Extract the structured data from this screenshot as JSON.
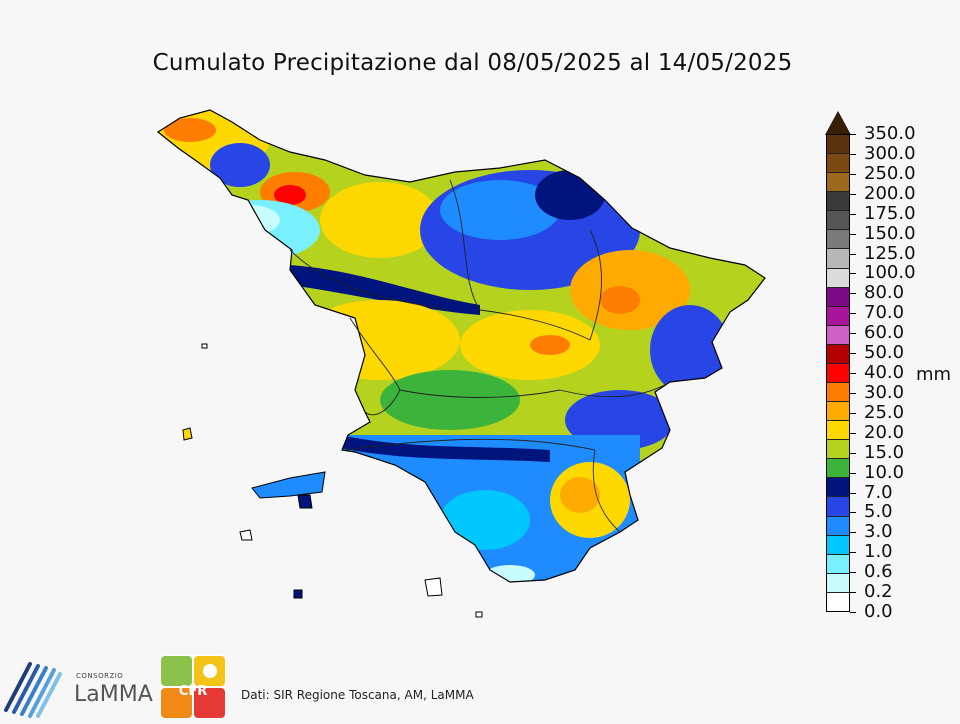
{
  "title": "Cumulato Precipitazione dal 08/05/2025 al 14/05/2025",
  "colorbar": {
    "unit": "mm",
    "labels": [
      "350.0",
      "300.0",
      "250.0",
      "200.0",
      "175.0",
      "150.0",
      "125.0",
      "100.0",
      "80.0",
      "70.0",
      "60.0",
      "50.0",
      "40.0",
      "30.0",
      "25.0",
      "20.0",
      "15.0",
      "10.0",
      "7.0",
      "5.0",
      "3.0",
      "1.0",
      "0.6",
      "0.2",
      "0.0"
    ],
    "colors": [
      "#5a3210",
      "#7a4a12",
      "#9b6a1c",
      "#3a3a3a",
      "#555555",
      "#7a7a7a",
      "#b8b8b8",
      "#dcdcdc",
      "#7d0a84",
      "#a8149a",
      "#d060c4",
      "#b40000",
      "#ff0000",
      "#ff7d00",
      "#ffaa00",
      "#ffd800",
      "#b4d21e",
      "#3cb43c",
      "#00147d",
      "#2846e6",
      "#1e8cff",
      "#00c8ff",
      "#78f0ff",
      "#c8fcff",
      "#ffffff"
    ],
    "arrow_color": "#3a1d05"
  },
  "footer": {
    "credit": "Dati: SIR Regione Toscana, AM, LaMMA"
  },
  "logos": {
    "lamma_top": "CONSORZIO",
    "lamma_name": "LaMMA",
    "cfr_text": "CFR"
  }
}
